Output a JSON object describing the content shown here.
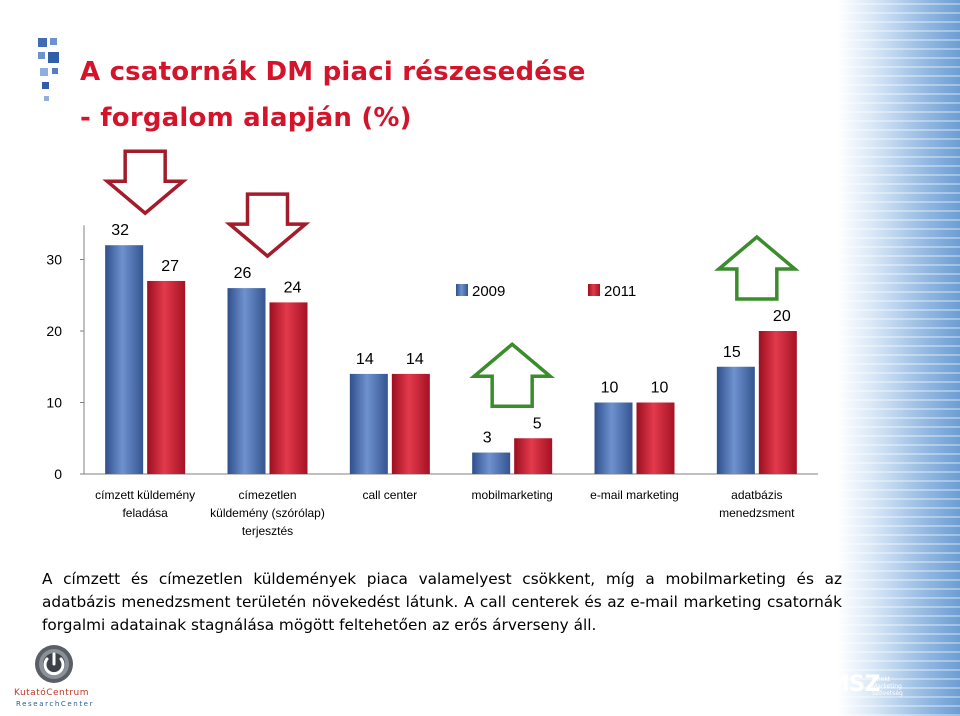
{
  "title_line1": "A csatornák DM piaci részesedése",
  "title_line2": "- forgalom alapján (%)",
  "chart_data": {
    "type": "bar",
    "categories": [
      [
        "címzett küldemény",
        "feladása"
      ],
      [
        "címezetlen",
        "küldemény (szórólap)",
        "terjesztés"
      ],
      [
        "call center"
      ],
      [
        "mobilmarketing"
      ],
      [
        "e-mail marketing"
      ],
      [
        "adatbázis",
        "menedzsment"
      ]
    ],
    "series": [
      {
        "name": "2009",
        "values": [
          32,
          26,
          14,
          3,
          10,
          15
        ],
        "color": "#4a6fb0"
      },
      {
        "name": "2011",
        "values": [
          27,
          24,
          14,
          5,
          10,
          20
        ],
        "color": "#cc1a2e"
      }
    ],
    "ylim": [
      0,
      32
    ],
    "yticks": [
      0,
      10,
      20,
      30
    ],
    "legend": "top-center",
    "arrows": [
      {
        "category": 0,
        "direction": "down",
        "color": "#a31c2c"
      },
      {
        "category": 1,
        "direction": "down",
        "color": "#a31c2c"
      },
      {
        "category": 3,
        "direction": "up",
        "color": "#3a8c2c"
      },
      {
        "category": 5,
        "direction": "up",
        "color": "#3a8c2c"
      }
    ]
  },
  "caption": "A címzett és címezetlen küldemények piaca valamelyest csökkent, míg a mobilmarketing és az adatbázis menedzsment területén növekedést látunk. A call centerek és az e-mail marketing csatornák forgalmi adatainak stagnálása mögött feltehetően az erős árverseny áll.",
  "logo_left": {
    "name": "KutatóCentrum",
    "sub": "ResearchCenter"
  },
  "logo_right": {
    "name": "DMSZ",
    "sub": [
      "Direkt",
      "Marketing",
      "Szövetség"
    ]
  }
}
